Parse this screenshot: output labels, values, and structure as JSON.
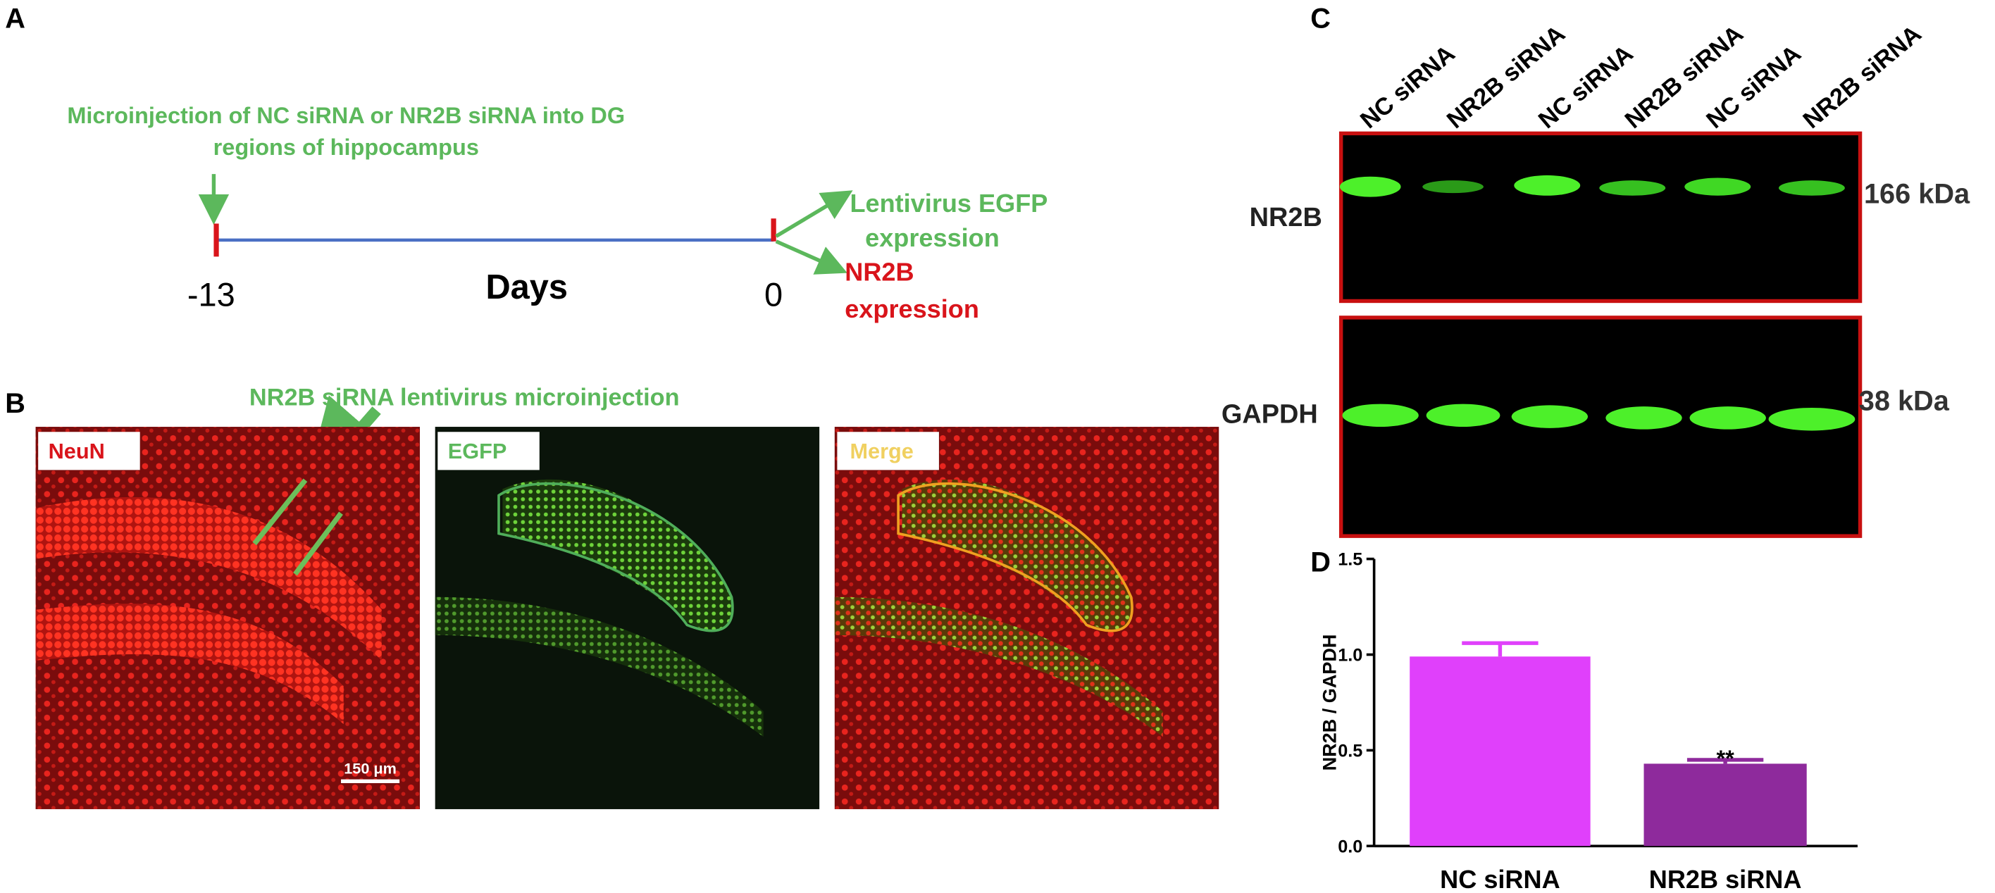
{
  "panel_a": {
    "letter": "A",
    "injection_lines": [
      "Microinjection of NC siRNA or NR2B siRNA into DG",
      "regions of hippocampus"
    ],
    "start_day": "-13",
    "axis_label": "Days",
    "end_day": "0",
    "egfp_lines": [
      "Lentivirus EGFP",
      "expression"
    ],
    "nr2b_lines": [
      "NR2B",
      "expression"
    ]
  },
  "panel_b": {
    "letter": "B",
    "injection_label": "NR2B siRNA lentivirus microinjection",
    "images": [
      "NeuN",
      "EGFP",
      "Merge"
    ],
    "scale_bar": "150 μm"
  },
  "panel_c": {
    "letter": "C",
    "lanes": [
      "NC siRNA",
      "NR2B siRNA",
      "NC siRNA",
      "NR2B siRNA",
      "NC siRNA",
      "NR2B siRNA"
    ],
    "blots": [
      {
        "label": "NR2B",
        "size": "166 kDa"
      },
      {
        "label": "GAPDH",
        "size": "38 kDa"
      }
    ]
  },
  "chart_data": {
    "type": "bar",
    "panel_letter": "D",
    "y_label": "NR2B / GAPDH",
    "categories": [
      "NC siRNA",
      "NR2B siRNA"
    ],
    "values": [
      0.99,
      0.43
    ],
    "errors": [
      0.07,
      0.02
    ],
    "colors": [
      "#e040fb",
      "#8e2a9c"
    ],
    "annotation": "**",
    "ylim": [
      0,
      1.5
    ],
    "yticks": [
      {
        "value": 0,
        "label": "0.0"
      },
      0.5,
      {
        "value": 1,
        "label": "1.0"
      },
      1.5
    ]
  }
}
